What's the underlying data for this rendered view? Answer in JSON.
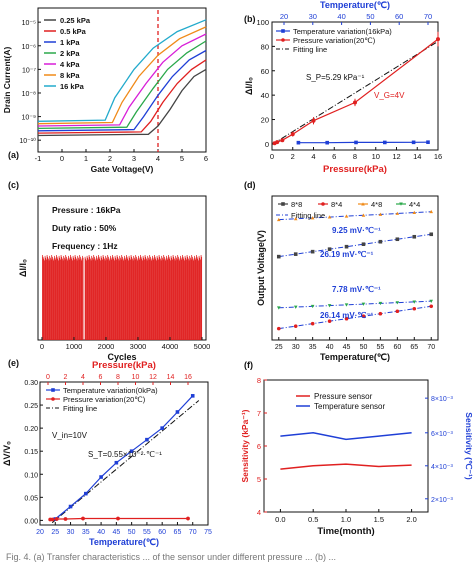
{
  "caption_fragment": "Fig. 4. (a) Transfer characteristics ... of the sensor under different pressure ... (b) ...",
  "colors": {
    "black": "#111111",
    "blue": "#1f3fd6",
    "red": "#e02020",
    "gray": "#444444",
    "green": "#2aa84a",
    "orange": "#f08a18",
    "magenta": "#d81ed8",
    "cyan": "#22aacc"
  },
  "chart_data": [
    {
      "panel": "(a)",
      "type": "line",
      "xlabel": "Gate Voltage(V)",
      "ylabel": "Drain Current(A)",
      "xlim": [
        -1,
        6
      ],
      "ylim_log10": [
        -10.5,
        -4.4
      ],
      "yscale": "log",
      "xticks": [
        "-1",
        "0",
        "1",
        "2",
        "3",
        "4",
        "5",
        "6"
      ],
      "yticks": [
        "10⁻⁵",
        "10⁻⁶",
        "10⁻⁷",
        "10⁻⁸",
        "10⁻⁹",
        "10⁻¹⁰"
      ],
      "legend": "top-left",
      "annotation": {
        "x": 4,
        "style": "dashed red vertical line"
      },
      "series": [
        {
          "name": "0.25 kPa",
          "color": "#444444",
          "x": [
            -1,
            3.6,
            4.0,
            4.5,
            5.0,
            5.5,
            6.0
          ],
          "log10_y": [
            -9.8,
            -9.75,
            -9.4,
            -8.7,
            -7.9,
            -7.3,
            -7.0
          ]
        },
        {
          "name": "0.5 kPa",
          "color": "#e02020",
          "x": [
            -1,
            3.3,
            3.7,
            4.2,
            4.8,
            5.4,
            6.0
          ],
          "log10_y": [
            -9.7,
            -9.65,
            -9.2,
            -8.4,
            -7.6,
            -7.0,
            -6.6
          ]
        },
        {
          "name": "1 kPa",
          "color": "#1f3fd6",
          "x": [
            -1,
            3.0,
            3.4,
            4.0,
            4.6,
            5.3,
            6.0
          ],
          "log10_y": [
            -9.6,
            -9.55,
            -9.0,
            -8.1,
            -7.3,
            -6.6,
            -6.2
          ]
        },
        {
          "name": "2 kPa",
          "color": "#2aa84a",
          "x": [
            -1,
            2.7,
            3.1,
            3.8,
            4.4,
            5.2,
            6.0
          ],
          "log10_y": [
            -9.5,
            -9.45,
            -8.8,
            -7.8,
            -7.0,
            -6.3,
            -5.8
          ]
        },
        {
          "name": "4 kPa",
          "color": "#d81ed8",
          "x": [
            -1,
            2.4,
            2.8,
            3.5,
            4.2,
            5.0,
            6.0
          ],
          "log10_y": [
            -9.4,
            -9.35,
            -8.6,
            -7.6,
            -6.7,
            -6.0,
            -5.5
          ]
        },
        {
          "name": "8 kPa",
          "color": "#f08a18",
          "x": [
            -1,
            2.1,
            2.5,
            3.2,
            4.0,
            4.9,
            6.0
          ],
          "log10_y": [
            -9.3,
            -9.25,
            -8.4,
            -7.3,
            -6.4,
            -5.7,
            -5.2
          ]
        },
        {
          "name": "16 kPa",
          "color": "#22aacc",
          "x": [
            -1,
            1.8,
            2.2,
            3.0,
            3.8,
            4.8,
            6.0
          ],
          "log10_y": [
            -9.2,
            -9.15,
            -8.2,
            -7.0,
            -6.1,
            -5.4,
            -4.9
          ]
        }
      ]
    },
    {
      "panel": "(b)",
      "type": "line",
      "xlabel": "Pressure(kPa)",
      "ylabel": "ΔI/I₀",
      "x2label": "Temperature(℃)",
      "xlim": [
        0,
        16
      ],
      "x2lim": [
        20,
        70
      ],
      "ylim": [
        -5,
        100
      ],
      "xticks": [
        "0",
        "2",
        "4",
        "6",
        "8",
        "10",
        "12",
        "14",
        "16"
      ],
      "x2ticks": [
        "20",
        "30",
        "40",
        "50",
        "60",
        "70"
      ],
      "yticks": [
        "0",
        "20",
        "40",
        "60",
        "80",
        "100"
      ],
      "legend": "top-left",
      "annotations": [
        "S_P=5.29 kPa⁻¹",
        "V_G=4V"
      ],
      "series": [
        {
          "name": "Temperature variation(16kPa)",
          "color": "#1f3fd6",
          "axis": "x2",
          "x": [
            25,
            35,
            45,
            55,
            65,
            70
          ],
          "y": [
            1,
            1,
            1.2,
            1.2,
            1.3,
            1.4
          ]
        },
        {
          "name": "Pressure variation(20℃)",
          "color": "#e02020",
          "x": [
            0.25,
            0.5,
            1,
            2,
            4,
            8,
            16
          ],
          "y": [
            0.5,
            1.5,
            3,
            8,
            19,
            34,
            86
          ],
          "err": [
            0.5,
            0.5,
            1,
            2,
            3,
            3,
            6
          ]
        },
        {
          "name": "Fitting line",
          "color": "#111111",
          "style": "dash-dot",
          "x": [
            0,
            16
          ],
          "y": [
            -0.5,
            84.1
          ]
        }
      ]
    },
    {
      "panel": "(c)",
      "type": "bar",
      "xlabel": "Cycles",
      "ylabel": "ΔI/I₀",
      "xlim": [
        0,
        5000
      ],
      "xticks": [
        "0",
        "1000",
        "2000",
        "3000",
        "4000",
        "5000"
      ],
      "annotations": [
        "Pressure : 16kPa",
        "Duty ratio : 50%",
        "Frequency : 1Hz"
      ],
      "color": "#e02020",
      "cycles": 5000,
      "peak_value_approx": 90,
      "gap_near_cycle": 1300
    },
    {
      "panel": "(d)",
      "type": "line",
      "xlabel": "Temperature(℃)",
      "ylabel": "Output Voltage(V)",
      "xlim": [
        23,
        72
      ],
      "xticks": [
        "25",
        "30",
        "35",
        "40",
        "45",
        "50",
        "55",
        "60",
        "65",
        "70"
      ],
      "legend": "top",
      "annotations": [
        "9.25 mV·℃⁻¹",
        "26.19 mV·℃⁻¹",
        "7.78 mV·℃⁻¹",
        "26.14 mV·℃⁻¹"
      ],
      "series": [
        {
          "name": "8*8",
          "color": "#444444",
          "x": [
            25,
            70
          ],
          "y": [
            4.6,
            5.78
          ]
        },
        {
          "name": "8*4",
          "color": "#e02020",
          "x": [
            25,
            70
          ],
          "y": [
            0.8,
            1.98
          ]
        },
        {
          "name": "4*8",
          "color": "#f08a18",
          "x": [
            25,
            70
          ],
          "y": [
            6.55,
            6.97
          ]
        },
        {
          "name": "4*4",
          "color": "#2aa84a",
          "x": [
            25,
            70
          ],
          "y": [
            1.9,
            2.25
          ]
        },
        {
          "name": "Fitting line",
          "color": "#1f3fd6",
          "style": "dash-dot"
        }
      ]
    },
    {
      "panel": "(e)",
      "type": "line",
      "xlabel": "Temperature(℃)",
      "ylabel": "ΔV/V₀",
      "x2label": "Pressure(kPa)",
      "xlim": [
        20,
        75
      ],
      "x2lim": [
        0,
        16
      ],
      "ylim": [
        -0.01,
        0.3
      ],
      "xticks": [
        "20",
        "25",
        "30",
        "35",
        "40",
        "45",
        "50",
        "55",
        "60",
        "65",
        "70",
        "75"
      ],
      "x2ticks": [
        "0",
        "2",
        "4",
        "6",
        "8",
        "10",
        "12",
        "14",
        "16"
      ],
      "yticks": [
        "0.00",
        "0.05",
        "0.10",
        "0.15",
        "0.20",
        "0.25",
        "0.30"
      ],
      "legend": "top-left",
      "annotations": [
        "V_in=10V",
        "S_T=0.55×10⁻²·℃⁻¹"
      ],
      "series": [
        {
          "name": "Temperature variation(0kPa)",
          "color": "#1f3fd6",
          "x": [
            25,
            30,
            35,
            40,
            45,
            50,
            55,
            60,
            65,
            70
          ],
          "y": [
            0.003,
            0.03,
            0.058,
            0.094,
            0.125,
            0.15,
            0.175,
            0.2,
            0.235,
            0.27
          ]
        },
        {
          "name": "Pressure variation(20℃)",
          "color": "#e02020",
          "axis": "x2",
          "x": [
            0.25,
            0.5,
            1,
            2,
            4,
            8,
            16
          ],
          "y": [
            0.002,
            0.002,
            0.003,
            0.003,
            0.004,
            0.004,
            0.004
          ]
        },
        {
          "name": "Fitting line",
          "color": "#111111",
          "style": "dash-dot",
          "x": [
            24,
            72
          ],
          "y": [
            -0.005,
            0.26
          ]
        }
      ]
    },
    {
      "panel": "(f)",
      "type": "line",
      "xlabel": "Time(month)",
      "ylabel": "Sensitivity (kPa⁻¹)",
      "y2label": "Sensitivity (℃⁻¹)",
      "xlim": [
        -0.25,
        2.25
      ],
      "ylim": [
        4,
        8
      ],
      "xticks": [
        "0.0",
        "0.5",
        "1.0",
        "1.5",
        "2.0"
      ],
      "yticks": [
        "4",
        "5",
        "6",
        "7",
        "8"
      ],
      "y2ticks": [
        "2×10⁻³",
        "4×10⁻³",
        "6×10⁻³",
        "8×10⁻³"
      ],
      "legend": "top-center",
      "series": [
        {
          "name": "Pressure sensor",
          "color": "#e02020",
          "x": [
            0,
            0.5,
            1.0,
            1.5,
            2.0
          ],
          "y": [
            5.3,
            5.4,
            5.45,
            5.38,
            5.42
          ]
        },
        {
          "name": "Temperature sensor",
          "color": "#1f3fd6",
          "x": [
            0,
            0.5,
            1.0,
            1.5,
            2.0
          ],
          "y": [
            6.3,
            6.4,
            6.2,
            6.3,
            6.4
          ]
        }
      ]
    }
  ]
}
